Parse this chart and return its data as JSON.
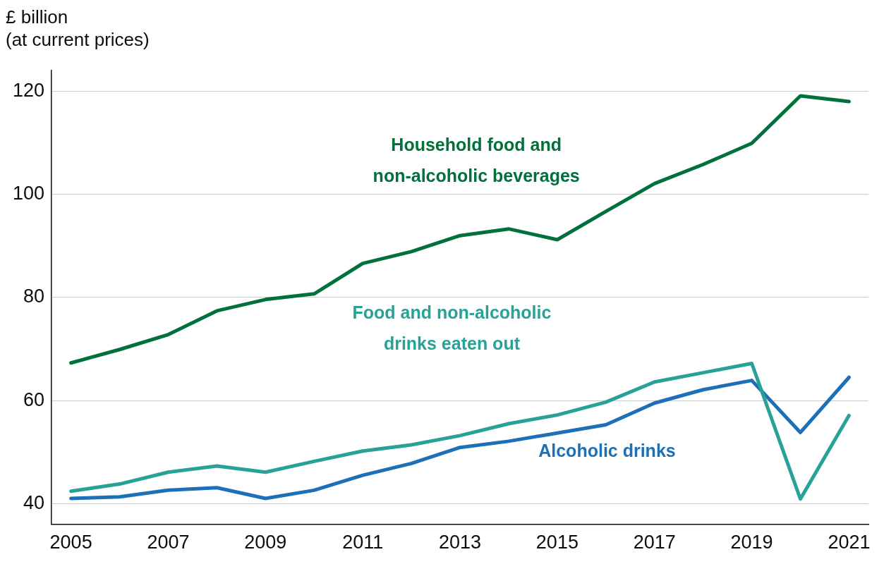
{
  "chart_data": {
    "type": "line",
    "ylabel": "£ billion\n(at current prices)",
    "x": [
      2005,
      2006,
      2007,
      2008,
      2009,
      2010,
      2011,
      2012,
      2013,
      2014,
      2015,
      2016,
      2017,
      2018,
      2019,
      2020,
      2021
    ],
    "series": [
      {
        "name": "Household food and non-alcoholic beverages",
        "color": "#00703c",
        "values": [
          67.3,
          69.9,
          72.8,
          77.4,
          79.6,
          80.7,
          86.6,
          88.9,
          92.0,
          93.3,
          91.2,
          96.7,
          102.1,
          105.8,
          109.9,
          119.1,
          118.0
        ]
      },
      {
        "name": "Food and non-alcoholic drinks eaten out",
        "color": "#28a197",
        "values": [
          42.4,
          43.8,
          46.1,
          47.3,
          46.1,
          48.2,
          50.2,
          51.4,
          53.2,
          55.5,
          57.2,
          59.7,
          63.6,
          65.4,
          67.2,
          40.9,
          57.1
        ]
      },
      {
        "name": "Alcoholic drinks",
        "color": "#1d70b8",
        "values": [
          41.0,
          41.3,
          42.6,
          43.1,
          41.0,
          42.6,
          45.5,
          47.8,
          50.9,
          52.1,
          53.7,
          55.3,
          59.5,
          62.1,
          63.9,
          53.8,
          64.5
        ]
      }
    ],
    "xlim": [
      2004.6,
      2021.4
    ],
    "xticks": [
      2005,
      2007,
      2009,
      2011,
      2013,
      2015,
      2017,
      2019,
      2021
    ],
    "ylim": [
      36,
      124
    ],
    "yticks": [
      40,
      60,
      80,
      100,
      120
    ],
    "grid": "y",
    "legend": false,
    "marker": "none",
    "line_style": "solid"
  }
}
